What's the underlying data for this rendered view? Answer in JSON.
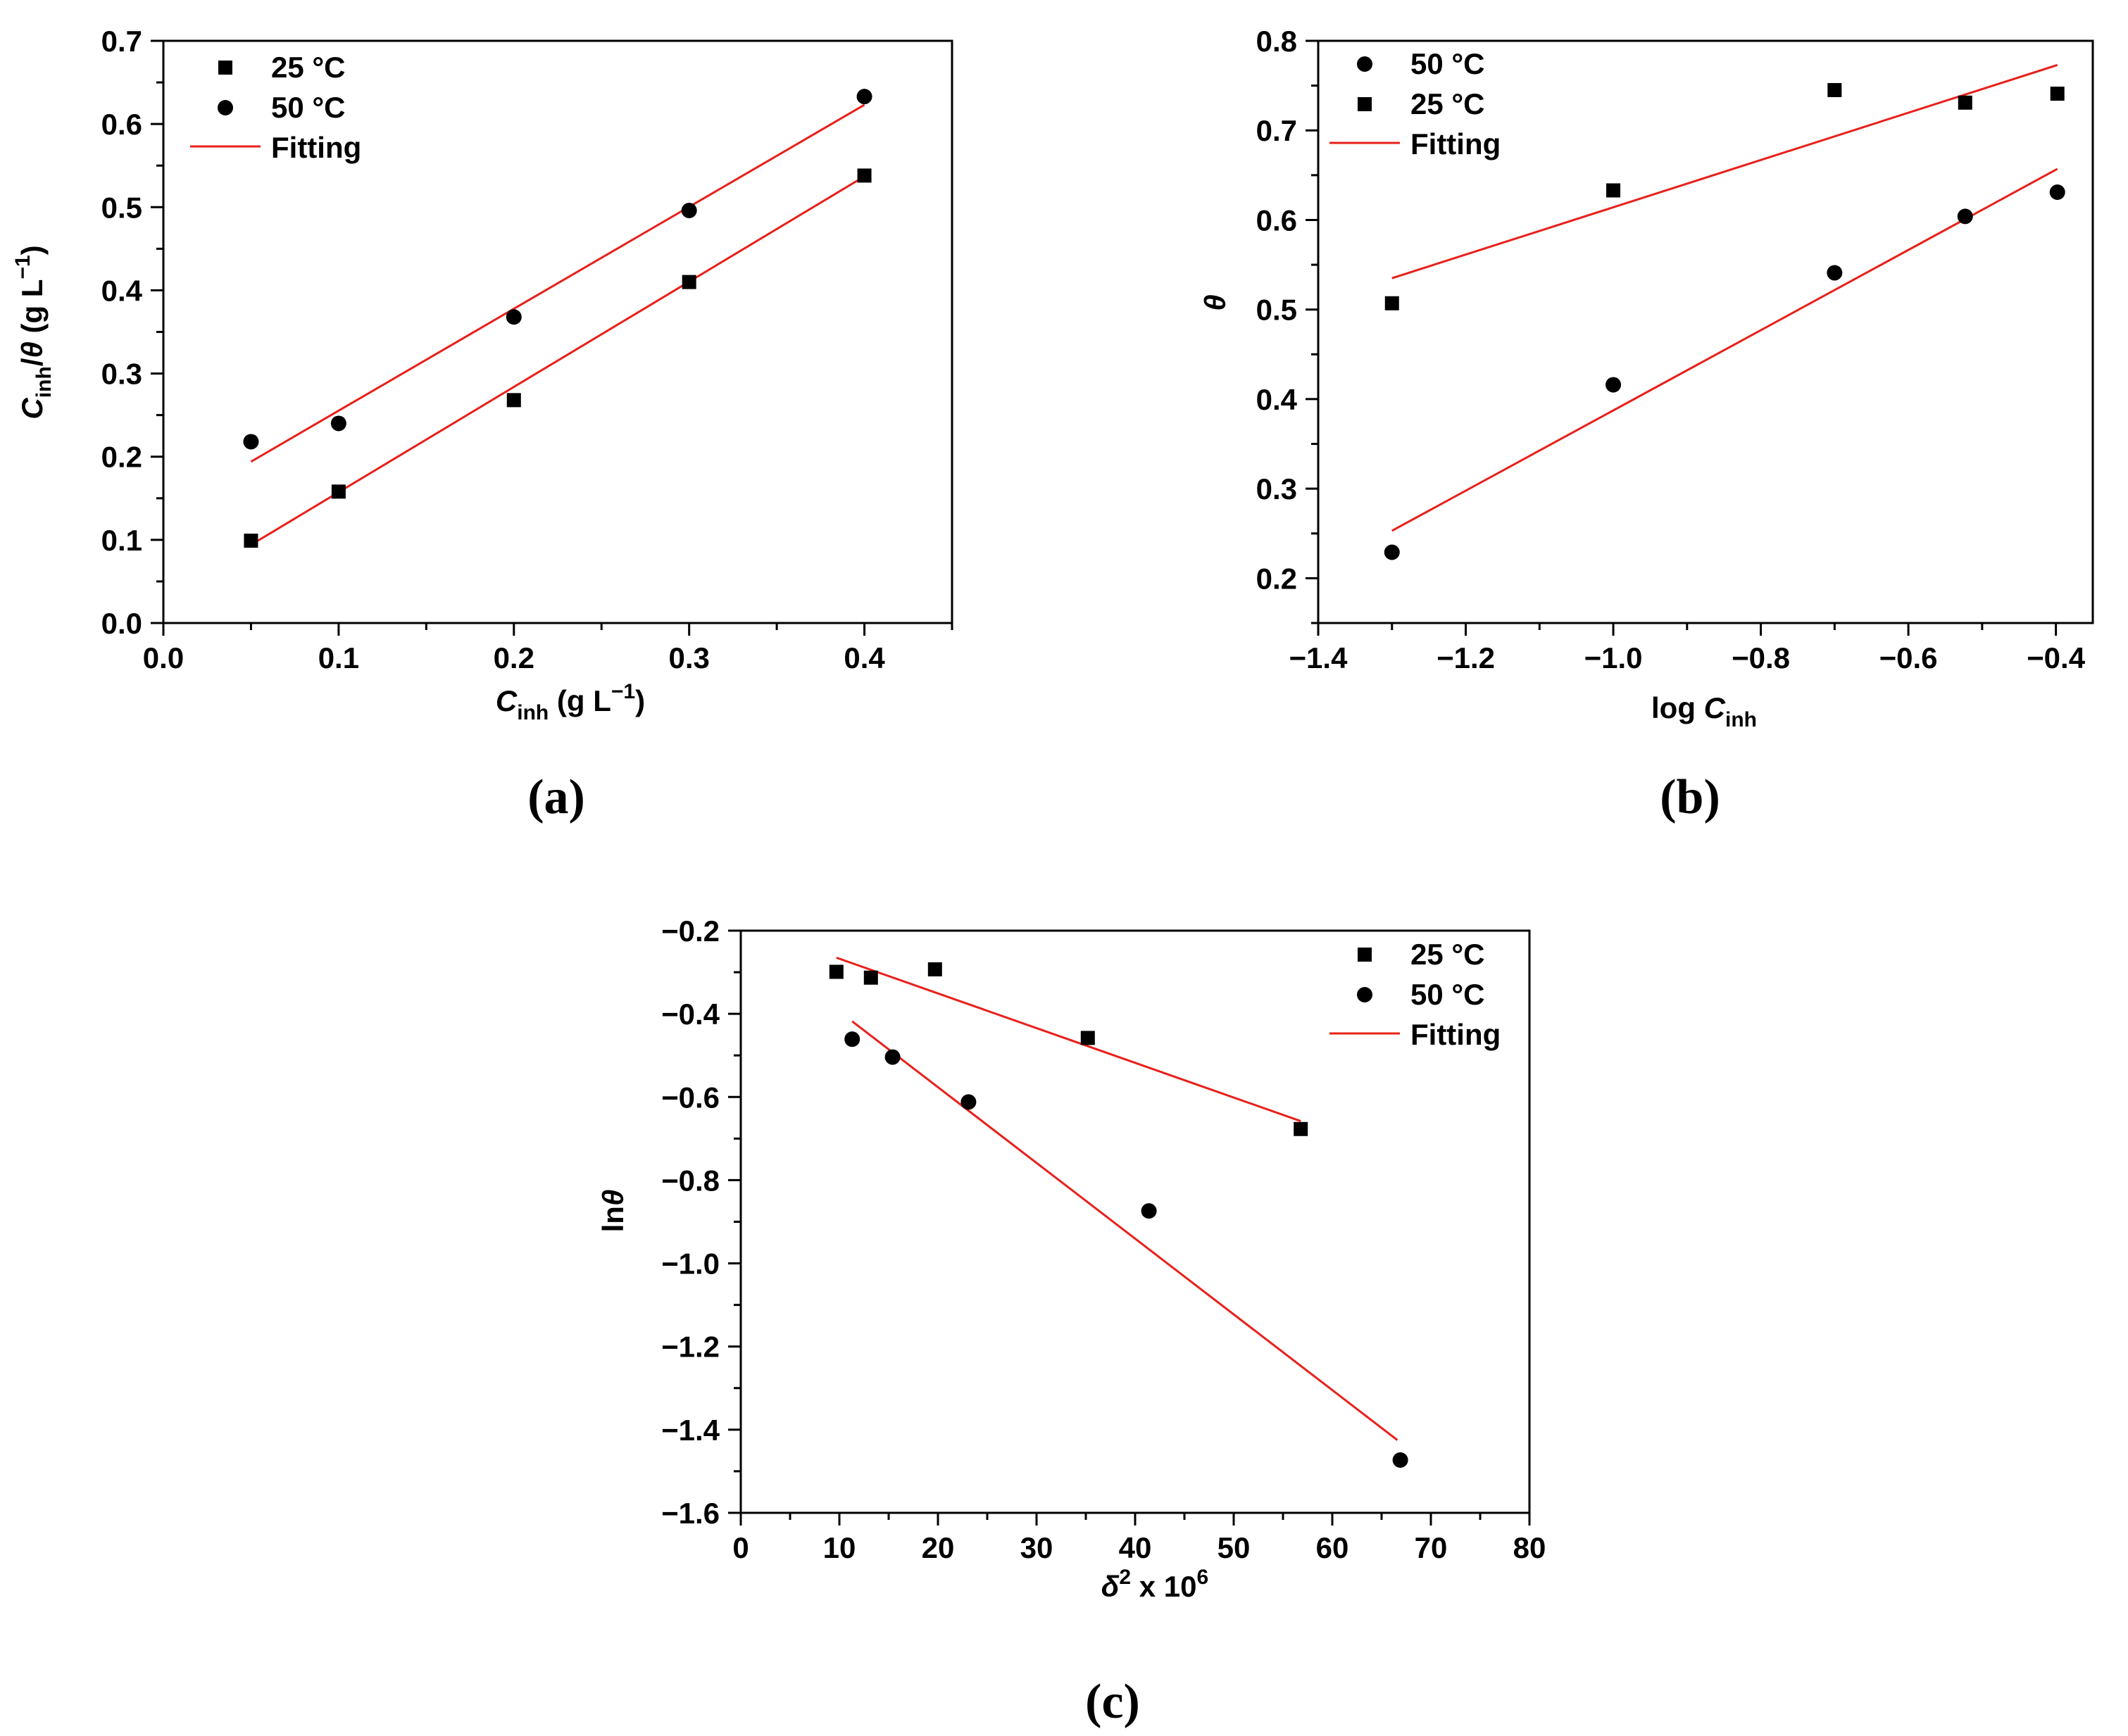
{
  "colors": {
    "fit": "#e8201a",
    "marker": "#000000",
    "axis": "#000000"
  },
  "chart_data": [
    {
      "panel_label": "(a)",
      "type": "scatter",
      "xlabel": {
        "main": "C",
        "sub": "inh",
        "rest": " (g L",
        "sup": "−1",
        "end": ")"
      },
      "ylabel": {
        "main": "C",
        "sub": "inh",
        "mid": "/θ (g L",
        "sup": "−1",
        "end": ")"
      },
      "xlim": [
        0,
        0.45
      ],
      "ylim": [
        0,
        0.7
      ],
      "xticks": [
        "0.0",
        "0.1",
        "0.2",
        "0.3",
        "0.4"
      ],
      "yticks": [
        "0.0",
        "0.1",
        "0.2",
        "0.3",
        "0.4",
        "0.5",
        "0.6",
        "0.7"
      ],
      "legend_position": "top-left",
      "legend": [
        "25 °C",
        "50 °C",
        "Fitting"
      ],
      "series": [
        {
          "name": "25 °C",
          "marker": "square",
          "x": [
            0.05,
            0.1,
            0.2,
            0.3,
            0.4
          ],
          "y": [
            0.099,
            0.158,
            0.268,
            0.41,
            0.538
          ]
        },
        {
          "name": "50 °C",
          "marker": "circle",
          "x": [
            0.05,
            0.1,
            0.2,
            0.3,
            0.4
          ],
          "y": [
            0.218,
            0.24,
            0.368,
            0.496,
            0.633
          ]
        }
      ],
      "fits": [
        {
          "x": [
            0.05,
            0.4
          ],
          "y": [
            0.094,
            0.537
          ]
        },
        {
          "x": [
            0.05,
            0.4
          ],
          "y": [
            0.194,
            0.623
          ]
        }
      ]
    },
    {
      "panel_label": "(b)",
      "type": "scatter",
      "xlabel": {
        "main": "log ",
        "italic": "C",
        "sub": "inh"
      },
      "ylabel": {
        "main": "θ"
      },
      "xlim": [
        -1.4,
        -0.35
      ],
      "ylim": [
        0.15,
        0.8
      ],
      "xticks": [
        "−1.4",
        "−1.2",
        "−1.0",
        "−0.8",
        "−0.6",
        "−0.4"
      ],
      "yticks": [
        "0.2",
        "0.3",
        "0.4",
        "0.5",
        "0.6",
        "0.7",
        "0.8"
      ],
      "legend_position": "top-left",
      "legend": [
        "50 °C",
        "25 °C",
        "Fitting"
      ],
      "series": [
        {
          "name": "50 °C",
          "marker": "circle",
          "x": [
            -1.3,
            -1.0,
            -0.7,
            -0.523,
            -0.398
          ],
          "y": [
            0.229,
            0.416,
            0.541,
            0.604,
            0.631
          ]
        },
        {
          "name": "25 °C",
          "marker": "square",
          "x": [
            -1.3,
            -1.0,
            -0.7,
            -0.523,
            -0.398
          ],
          "y": [
            0.507,
            0.633,
            0.745,
            0.731,
            0.741
          ]
        }
      ],
      "fits": [
        {
          "x": [
            -1.3,
            -0.398
          ],
          "y": [
            0.253,
            0.657
          ]
        },
        {
          "x": [
            -1.3,
            -0.398
          ],
          "y": [
            0.535,
            0.773
          ]
        }
      ]
    },
    {
      "panel_label": "(c)",
      "type": "scatter",
      "xlabel": {
        "main": "δ",
        "sup": "2",
        "rest": " x 10",
        "sup2": "6"
      },
      "ylabel": {
        "main": "ln",
        "italic": "θ"
      },
      "xlim": [
        0,
        80
      ],
      "ylim": [
        -1.6,
        -0.2
      ],
      "xticks": [
        "0",
        "10",
        "20",
        "30",
        "40",
        "50",
        "60",
        "70",
        "80"
      ],
      "yticks": [
        "−1.6",
        "−1.4",
        "−1.2",
        "−1.0",
        "−0.8",
        "−0.6",
        "−0.4",
        "−0.2"
      ],
      "legend_position": "top-right",
      "legend": [
        "25 °C",
        "50 °C",
        "Fitting"
      ],
      "series": [
        {
          "name": "25 °C",
          "marker": "square",
          "x": [
            9.7,
            13.2,
            19.7,
            35.2,
            56.8
          ],
          "y": [
            -0.299,
            -0.313,
            -0.293,
            -0.458,
            -0.677
          ]
        },
        {
          "name": "50 °C",
          "marker": "circle",
          "x": [
            11.3,
            15.4,
            23.1,
            41.4,
            66.9
          ],
          "y": [
            -0.461,
            -0.504,
            -0.612,
            -0.874,
            -1.473
          ]
        }
      ],
      "fits": [
        {
          "x": [
            9.7,
            56.8
          ],
          "y": [
            -0.265,
            -0.658
          ]
        },
        {
          "x": [
            11.3,
            66.6
          ],
          "y": [
            -0.418,
            -1.425
          ]
        }
      ]
    }
  ]
}
